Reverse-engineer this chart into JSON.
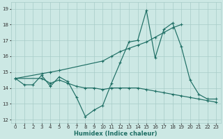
{
  "xlabel": "Humidex (Indice chaleur)",
  "xlim": [
    -0.5,
    23.5
  ],
  "ylim": [
    11.8,
    19.4
  ],
  "xticks": [
    0,
    1,
    2,
    3,
    4,
    5,
    6,
    7,
    8,
    9,
    10,
    11,
    12,
    13,
    14,
    15,
    16,
    17,
    18,
    19,
    20,
    21,
    22,
    23
  ],
  "yticks": [
    12,
    13,
    14,
    15,
    16,
    17,
    18,
    19
  ],
  "bg_color": "#cce8e4",
  "grid_color": "#a8ccc8",
  "line_color": "#1e6e64",
  "series": [
    {
      "x": [
        0,
        3,
        4,
        5,
        10,
        11,
        12,
        13,
        14,
        15,
        16,
        17,
        18,
        19
      ],
      "y": [
        14.6,
        14.9,
        15.0,
        15.1,
        15.7,
        16.0,
        16.3,
        16.5,
        16.7,
        16.9,
        17.2,
        17.5,
        17.8,
        18.0
      ]
    },
    {
      "x": [
        0,
        3,
        4,
        5,
        6,
        7,
        8,
        9,
        10,
        11,
        12,
        13,
        14,
        15,
        16,
        17,
        18,
        19,
        20,
        21,
        22,
        23
      ],
      "y": [
        14.6,
        14.6,
        14.3,
        14.5,
        14.3,
        14.1,
        14.0,
        14.0,
        13.9,
        14.0,
        14.0,
        14.0,
        14.0,
        13.9,
        13.8,
        13.7,
        13.6,
        13.5,
        13.4,
        13.3,
        13.2,
        13.1
      ]
    },
    {
      "x": [
        0,
        1,
        2,
        3,
        4,
        5,
        6,
        7,
        8,
        9,
        10,
        11,
        12,
        13,
        14,
        15,
        16,
        17,
        18,
        19,
        20,
        21,
        22,
        23
      ],
      "y": [
        14.6,
        14.2,
        14.2,
        14.8,
        14.1,
        14.7,
        14.4,
        13.4,
        12.2,
        12.6,
        12.9,
        14.3,
        15.6,
        16.9,
        17.0,
        18.9,
        15.9,
        17.7,
        18.1,
        16.6,
        14.5,
        13.6,
        13.3,
        13.3
      ]
    }
  ]
}
